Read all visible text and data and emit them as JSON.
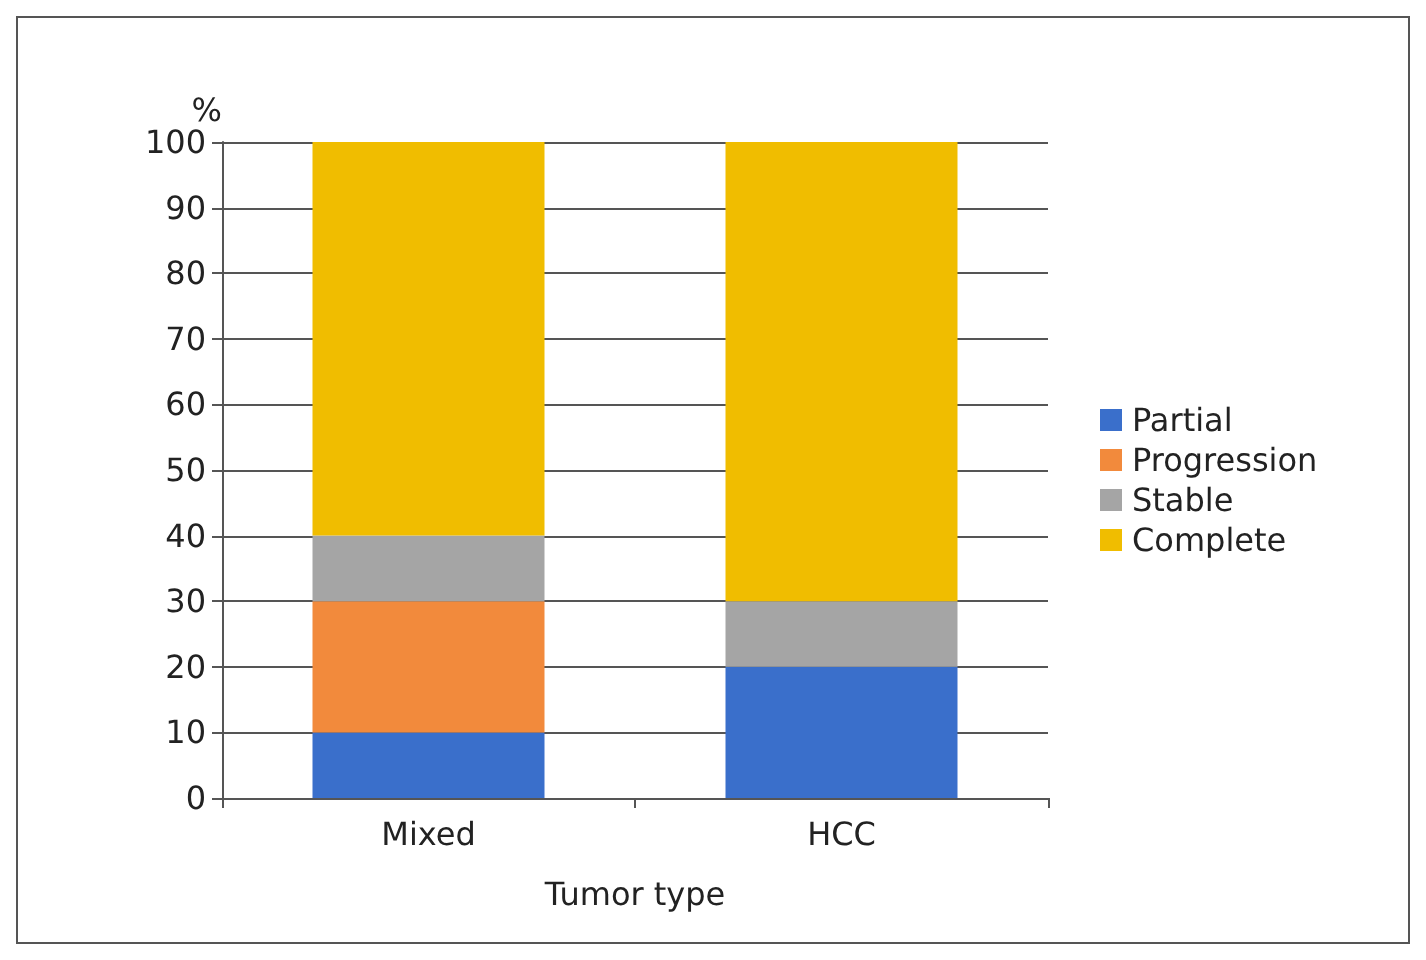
{
  "chart_data": {
    "type": "bar",
    "stacked": true,
    "ylabel": "%",
    "xlabel": "Tumor type",
    "categories": [
      "Mixed",
      "HCC"
    ],
    "series": [
      {
        "name": "Partial",
        "color": "#3a6fcb",
        "values": [
          10,
          20
        ]
      },
      {
        "name": "Progression",
        "color": "#f28a3c",
        "values": [
          20,
          0
        ]
      },
      {
        "name": "Stable",
        "color": "#a5a5a5",
        "values": [
          10,
          10
        ]
      },
      {
        "name": "Complete",
        "color": "#f0bd00",
        "values": [
          60,
          70
        ]
      }
    ],
    "ylim": [
      0,
      100
    ],
    "yticks": [
      0,
      10,
      20,
      30,
      40,
      50,
      60,
      70,
      80,
      90,
      100
    ],
    "grid": "y",
    "legend": "right"
  }
}
